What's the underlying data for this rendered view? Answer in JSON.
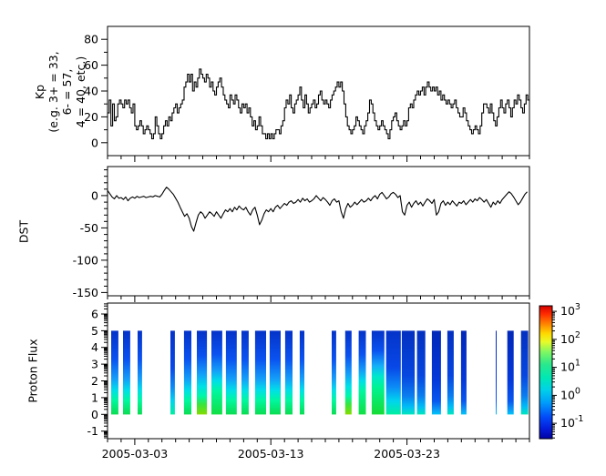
{
  "figure": {
    "bg": "#ffffff",
    "frame_color": "#000000",
    "series_color": "#000000"
  },
  "x_axis": {
    "start": "2005-03-01",
    "end": "2005-04-01",
    "span_days": 31,
    "major_ticks": [
      {
        "day": 2,
        "label": "2005-03-03"
      },
      {
        "day": 12,
        "label": "2005-03-13"
      },
      {
        "day": 22,
        "label": "2005-03-23"
      }
    ],
    "minor_tick_step_days": 1
  },
  "panels": {
    "kp": {
      "ylabel_lines": [
        "Kp",
        "(e.g. 3+ = 33,",
        "6- = 57,",
        "4 = 40, etc.)"
      ],
      "ylim": [
        -10,
        90
      ],
      "yticks": [
        0,
        20,
        40,
        60,
        80
      ],
      "yminor_step": 10
    },
    "dst": {
      "ylabel": "DST",
      "ylim": [
        -155,
        45
      ],
      "yticks": [
        0,
        -50,
        -100,
        -150
      ],
      "yminor_step": 10
    },
    "flux": {
      "ylabel": "Proton Flux",
      "ylim": [
        -1.45,
        6.65
      ],
      "yticks": [
        -1,
        0,
        1,
        2,
        3,
        4,
        5,
        6
      ],
      "log_minor_ticks": true
    }
  },
  "colorbar": {
    "exponent_ticks": [
      3,
      2,
      1,
      0,
      -1
    ],
    "log_range": [
      3.2,
      -1.55
    ],
    "gradient": [
      [
        0,
        "#d40000"
      ],
      [
        6,
        "#ff2a00"
      ],
      [
        14,
        "#ff8800"
      ],
      [
        21,
        "#ffd900"
      ],
      [
        27,
        "#e8fa28"
      ],
      [
        35,
        "#7df764"
      ],
      [
        44,
        "#2ae88c"
      ],
      [
        54,
        "#00e8b4"
      ],
      [
        63,
        "#00d2e8"
      ],
      [
        73,
        "#009cfa"
      ],
      [
        84,
        "#0349f8"
      ],
      [
        93,
        "#041ad8"
      ],
      [
        100,
        "#0303a3"
      ]
    ]
  },
  "chart_data": [
    {
      "type": "line",
      "name": "kp_index",
      "step": true,
      "interval_hours": 3,
      "x_start": "2005-03-01",
      "x_end": "2005-04-01",
      "ylabel": "Kp",
      "ylim": [
        -10,
        90
      ],
      "values": [
        23,
        33,
        13,
        30,
        17,
        20,
        30,
        33,
        30,
        27,
        33,
        30,
        33,
        27,
        23,
        30,
        13,
        10,
        13,
        17,
        13,
        7,
        10,
        13,
        10,
        7,
        3,
        7,
        20,
        13,
        7,
        3,
        7,
        13,
        17,
        13,
        20,
        17,
        23,
        27,
        30,
        23,
        27,
        30,
        33,
        43,
        47,
        53,
        47,
        53,
        40,
        47,
        43,
        50,
        57,
        53,
        50,
        47,
        53,
        50,
        43,
        47,
        40,
        37,
        43,
        47,
        50,
        43,
        37,
        33,
        30,
        27,
        37,
        33,
        30,
        37,
        33,
        27,
        23,
        30,
        27,
        30,
        23,
        27,
        20,
        13,
        17,
        10,
        13,
        20,
        13,
        7,
        7,
        3,
        7,
        3,
        7,
        3,
        7,
        10,
        10,
        7,
        13,
        17,
        27,
        33,
        30,
        37,
        27,
        23,
        30,
        33,
        37,
        43,
        33,
        27,
        37,
        30,
        23,
        27,
        30,
        33,
        27,
        30,
        37,
        40,
        33,
        30,
        33,
        30,
        27,
        33,
        37,
        40,
        43,
        47,
        43,
        47,
        40,
        30,
        20,
        13,
        10,
        7,
        10,
        13,
        20,
        17,
        13,
        10,
        7,
        13,
        17,
        23,
        33,
        30,
        23,
        17,
        13,
        10,
        13,
        17,
        13,
        10,
        7,
        3,
        10,
        17,
        20,
        23,
        17,
        13,
        10,
        13,
        17,
        13,
        17,
        27,
        30,
        27,
        33,
        37,
        40,
        37,
        40,
        43,
        37,
        43,
        47,
        43,
        40,
        43,
        40,
        43,
        37,
        40,
        33,
        37,
        33,
        30,
        33,
        30,
        27,
        30,
        33,
        27,
        23,
        20,
        20,
        27,
        23,
        17,
        13,
        10,
        7,
        10,
        13,
        10,
        7,
        13,
        23,
        30,
        30,
        27,
        23,
        30,
        23,
        17,
        13,
        20,
        27,
        33,
        27,
        23,
        30,
        33,
        27,
        20,
        27,
        33,
        30,
        37,
        33,
        27,
        23,
        30,
        37,
        33
      ]
    },
    {
      "type": "line",
      "name": "dst_index",
      "step": false,
      "interval_hours": 4,
      "x_start": "2005-03-01",
      "x_end": "2005-04-01",
      "ylabel": "DST",
      "ylim": [
        -155,
        45
      ],
      "values": [
        8,
        3,
        -2,
        -5,
        0,
        -4,
        -3,
        -6,
        -2,
        -8,
        -4,
        -2,
        -4,
        -1,
        -3,
        -2,
        -1,
        -3,
        -2,
        -1,
        -2,
        0,
        -1,
        -2,
        2,
        8,
        13,
        10,
        6,
        2,
        -4,
        -10,
        -18,
        -25,
        -32,
        -28,
        -35,
        -48,
        -55,
        -42,
        -30,
        -25,
        -28,
        -35,
        -30,
        -25,
        -28,
        -32,
        -25,
        -30,
        -35,
        -28,
        -22,
        -25,
        -20,
        -25,
        -18,
        -22,
        -16,
        -20,
        -22,
        -18,
        -25,
        -30,
        -22,
        -18,
        -30,
        -45,
        -38,
        -28,
        -22,
        -25,
        -20,
        -25,
        -18,
        -15,
        -20,
        -16,
        -12,
        -15,
        -10,
        -8,
        -12,
        -10,
        -6,
        -10,
        -4,
        -8,
        -5,
        -10,
        -8,
        -5,
        0,
        -4,
        -8,
        -3,
        -6,
        -10,
        -15,
        -8,
        -5,
        -10,
        -8,
        -25,
        -35,
        -20,
        -12,
        -18,
        -15,
        -10,
        -14,
        -10,
        -6,
        -10,
        -8,
        -4,
        -8,
        -3,
        0,
        -5,
        2,
        5,
        0,
        -5,
        -2,
        3,
        5,
        2,
        -3,
        0,
        -25,
        -30,
        -15,
        -10,
        -18,
        -12,
        -8,
        -14,
        -10,
        -16,
        -10,
        -5,
        -8,
        -12,
        -6,
        -30,
        -25,
        -12,
        -8,
        -15,
        -10,
        -14,
        -8,
        -12,
        -16,
        -10,
        -12,
        -8,
        -14,
        -10,
        -6,
        -10,
        -5,
        -8,
        -3,
        -6,
        -10,
        -6,
        -12,
        -18,
        -10,
        -14,
        -8,
        -12,
        -6,
        -2,
        2,
        6,
        3,
        -2,
        -8,
        -14,
        -10,
        -4,
        2,
        6
      ]
    },
    {
      "type": "heatmap",
      "name": "proton_flux_spectrogram",
      "ylabel": "Proton Flux",
      "ylim": [
        -1.45,
        6.65
      ],
      "stripe_y_range": [
        0,
        5
      ],
      "value_scale": "log10",
      "color_range_exponents": [
        -1.55,
        3.2
      ],
      "stripes": [
        {
          "start": 0.27,
          "end": 0.8,
          "profile": "med"
        },
        {
          "start": 1.14,
          "end": 1.67,
          "profile": "med"
        },
        {
          "start": 2.21,
          "end": 2.54,
          "profile": "med"
        },
        {
          "start": 4.62,
          "end": 4.95,
          "profile": "low"
        },
        {
          "start": 5.62,
          "end": 6.16,
          "profile": "med"
        },
        {
          "start": 6.56,
          "end": 7.3,
          "profile": "high"
        },
        {
          "start": 7.63,
          "end": 8.43,
          "profile": "high2"
        },
        {
          "start": 8.7,
          "end": 9.5,
          "profile": "med"
        },
        {
          "start": 9.84,
          "end": 10.37,
          "profile": "med"
        },
        {
          "start": 10.84,
          "end": 11.65,
          "profile": "med"
        },
        {
          "start": 11.91,
          "end": 12.72,
          "profile": "med"
        },
        {
          "start": 13.05,
          "end": 13.59,
          "profile": "med"
        },
        {
          "start": 14.12,
          "end": 14.46,
          "profile": "med"
        },
        {
          "start": 16.47,
          "end": 16.8,
          "profile": "med"
        },
        {
          "start": 17.46,
          "end": 17.93,
          "profile": "high"
        },
        {
          "start": 18.45,
          "end": 18.98,
          "profile": "high2"
        },
        {
          "start": 19.41,
          "end": 20.34,
          "profile": "plume"
        },
        {
          "start": 20.47,
          "end": 21.55,
          "profile": "low"
        },
        {
          "start": 21.62,
          "end": 22.57,
          "profile": "lowblue"
        },
        {
          "start": 22.74,
          "end": 23.35,
          "profile": "lowblue"
        },
        {
          "start": 23.83,
          "end": 24.5,
          "profile": "blue"
        },
        {
          "start": 24.97,
          "end": 25.44,
          "profile": "lowblue"
        },
        {
          "start": 25.97,
          "end": 26.37,
          "profile": "blue"
        },
        {
          "start": 28.52,
          "end": 28.58,
          "profile": "blue"
        },
        {
          "start": 29.37,
          "end": 29.84,
          "profile": "blue"
        },
        {
          "start": 30.38,
          "end": 30.91,
          "profile": "lowblue"
        }
      ],
      "profiles": {
        "high": [
          [
            0,
            "#0433c8"
          ],
          [
            30,
            "#0a52f0"
          ],
          [
            52,
            "#14a0f8"
          ],
          [
            66,
            "#00dfe8"
          ],
          [
            78,
            "#00f7a8"
          ],
          [
            88,
            "#38e53c"
          ],
          [
            100,
            "#86dc00"
          ]
        ],
        "high2": [
          [
            0,
            "#0433c8"
          ],
          [
            28,
            "#0a52f0"
          ],
          [
            48,
            "#14a0f8"
          ],
          [
            60,
            "#00dfe8"
          ],
          [
            72,
            "#00f7a0"
          ],
          [
            100,
            "#12df42"
          ]
        ],
        "plume": [
          [
            0,
            "#0433c8"
          ],
          [
            24,
            "#0a52f0"
          ],
          [
            42,
            "#14aef8"
          ],
          [
            54,
            "#00e6cf"
          ],
          [
            68,
            "#00f392"
          ],
          [
            100,
            "#16dc35"
          ]
        ],
        "med": [
          [
            0,
            "#0433c8"
          ],
          [
            34,
            "#0a52f0"
          ],
          [
            58,
            "#14a0f8"
          ],
          [
            71,
            "#00dfe8"
          ],
          [
            83,
            "#00f7a0"
          ],
          [
            100,
            "#0bdc52"
          ]
        ],
        "low": [
          [
            0,
            "#0433c8"
          ],
          [
            44,
            "#0848e8"
          ],
          [
            68,
            "#0c8ef6"
          ],
          [
            84,
            "#00d5ee"
          ],
          [
            100,
            "#00ef9e"
          ]
        ],
        "lowblue": [
          [
            0,
            "#0330c0"
          ],
          [
            54,
            "#0646e0"
          ],
          [
            78,
            "#0a7eef"
          ],
          [
            91,
            "#00bef6"
          ],
          [
            100,
            "#00e6bc"
          ]
        ],
        "blue": [
          [
            0,
            "#0228b8"
          ],
          [
            58,
            "#0438d8"
          ],
          [
            84,
            "#0857ee"
          ],
          [
            94,
            "#0c98f6"
          ],
          [
            100,
            "#00c6f6"
          ]
        ]
      }
    }
  ]
}
